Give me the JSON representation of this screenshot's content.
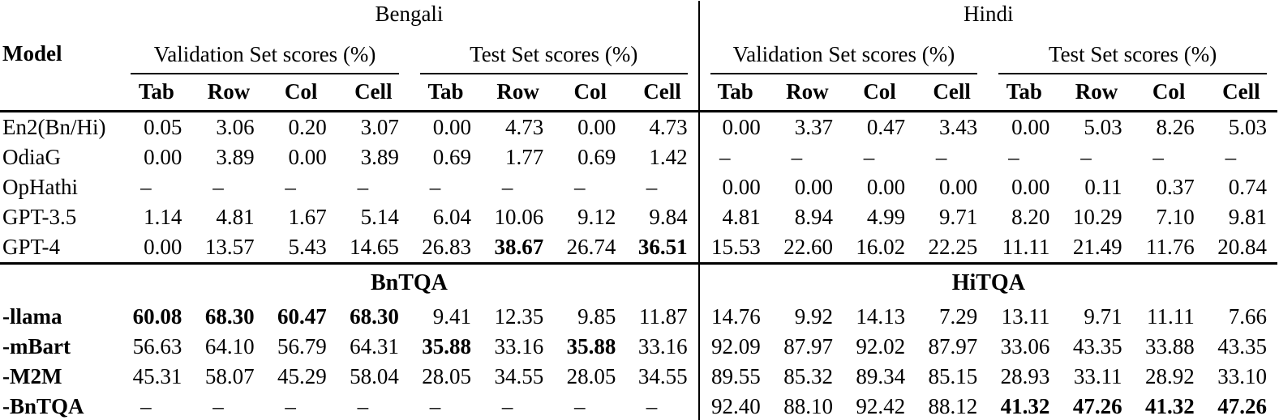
{
  "header": {
    "model_label": "Model",
    "languages": [
      "Bengali",
      "Hindi"
    ],
    "set_labels": [
      "Validation Set scores (%)",
      "Test Set scores (%)"
    ],
    "metrics": [
      "Tab",
      "Row",
      "Col",
      "Cell"
    ]
  },
  "dash": "–",
  "sections": [
    {
      "rows": [
        {
          "model": "En2(Bn/Hi)",
          "model_bold": false,
          "bold_cols": [],
          "values": [
            "0.05",
            "3.06",
            "0.20",
            "3.07",
            "0.00",
            "4.73",
            "0.00",
            "4.73",
            "0.00",
            "3.37",
            "0.47",
            "3.43",
            "0.00",
            "5.03",
            "8.26",
            "5.03"
          ]
        },
        {
          "model": "OdiaG",
          "model_bold": false,
          "bold_cols": [],
          "values": [
            "0.00",
            "3.89",
            "0.00",
            "3.89",
            "0.69",
            "1.77",
            "0.69",
            "1.42",
            "–",
            "–",
            "–",
            "–",
            "–",
            "–",
            "–",
            "–"
          ]
        },
        {
          "model": "OpHathi",
          "model_bold": false,
          "bold_cols": [],
          "values": [
            "–",
            "–",
            "–",
            "–",
            "–",
            "–",
            "–",
            "–",
            "0.00",
            "0.00",
            "0.00",
            "0.00",
            "0.00",
            "0.11",
            "0.37",
            "0.74"
          ]
        },
        {
          "model": "GPT-3.5",
          "model_bold": false,
          "bold_cols": [],
          "values": [
            "1.14",
            "4.81",
            "1.67",
            "5.14",
            "6.04",
            "10.06",
            "9.12",
            "9.84",
            "4.81",
            "8.94",
            "4.99",
            "9.71",
            "8.20",
            "10.29",
            "7.10",
            "9.81"
          ]
        },
        {
          "model": "GPT-4",
          "model_bold": false,
          "bold_cols": [
            5,
            7
          ],
          "values": [
            "0.00",
            "13.57",
            "5.43",
            "14.65",
            "26.83",
            "38.67",
            "26.74",
            "36.51",
            "15.53",
            "22.60",
            "16.02",
            "22.25",
            "11.11",
            "21.49",
            "11.76",
            "20.84"
          ]
        }
      ]
    },
    {
      "titles": [
        "BnTQA",
        "HiTQA"
      ],
      "rows": [
        {
          "model": "-llama",
          "model_bold": true,
          "bold_cols": [
            0,
            1,
            2,
            3
          ],
          "values": [
            "60.08",
            "68.30",
            "60.47",
            "68.30",
            "9.41",
            "12.35",
            "9.85",
            "11.87",
            "14.76",
            "9.92",
            "14.13",
            "7.29",
            "13.11",
            "9.71",
            "11.11",
            "7.66"
          ]
        },
        {
          "model": "-mBart",
          "model_bold": true,
          "bold_cols": [
            4,
            6
          ],
          "values": [
            "56.63",
            "64.10",
            "56.79",
            "64.31",
            "35.88",
            "33.16",
            "35.88",
            "33.16",
            "92.09",
            "87.97",
            "92.02",
            "87.97",
            "33.06",
            "43.35",
            "33.88",
            "43.35"
          ]
        },
        {
          "model": "-M2M",
          "model_bold": true,
          "bold_cols": [],
          "values": [
            "45.31",
            "58.07",
            "45.29",
            "58.04",
            "28.05",
            "34.55",
            "28.05",
            "34.55",
            "89.55",
            "85.32",
            "89.34",
            "85.15",
            "28.93",
            "33.11",
            "28.92",
            "33.10"
          ]
        },
        {
          "model": "-BnTQA",
          "model_bold": true,
          "bold_cols": [
            12,
            13,
            14,
            15
          ],
          "values": [
            "–",
            "–",
            "–",
            "–",
            "–",
            "–",
            "–",
            "–",
            "92.40",
            "88.10",
            "92.42",
            "88.12",
            "41.32",
            "47.26",
            "41.32",
            "47.26"
          ]
        }
      ]
    }
  ]
}
